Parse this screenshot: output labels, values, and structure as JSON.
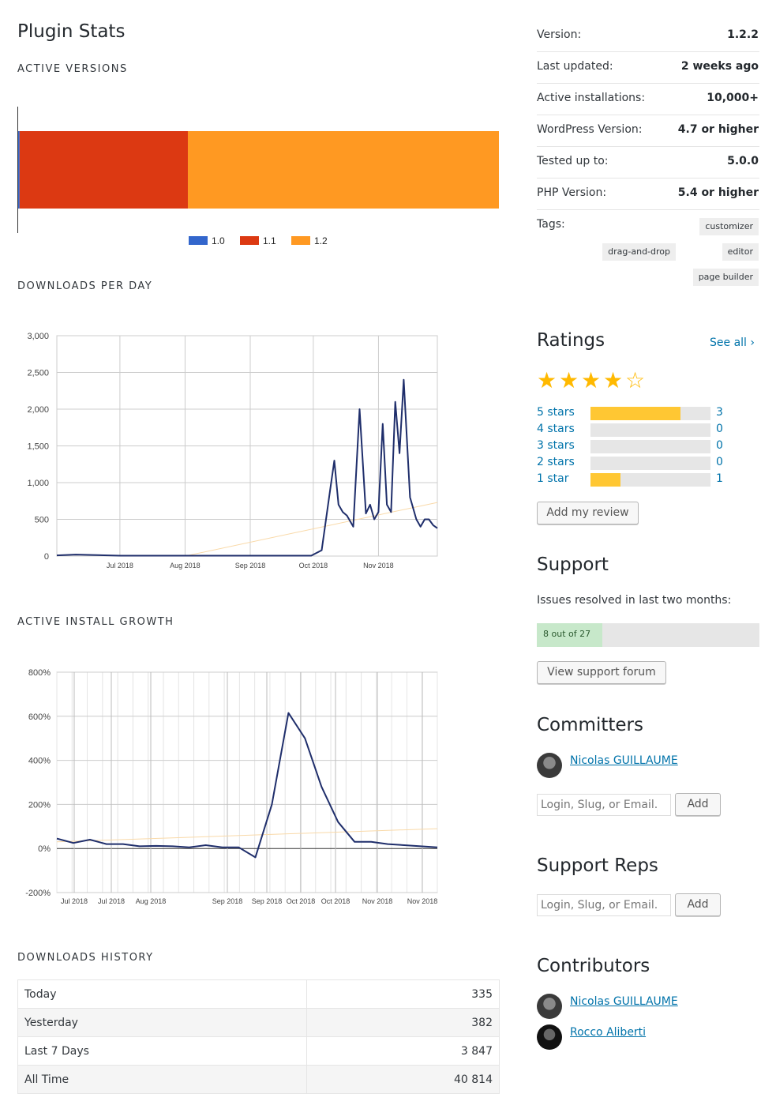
{
  "title": "Plugin Stats",
  "sections": {
    "active_versions": "ACTIVE VERSIONS",
    "downloads_per_day": "DOWNLOADS PER DAY",
    "active_install_growth": "ACTIVE INSTALL GROWTH",
    "downloads_history": "DOWNLOADS HISTORY"
  },
  "chart_data": [
    {
      "type": "bar",
      "categories": [
        "1.0",
        "1.1",
        "1.2"
      ],
      "values": [
        0.3,
        35.0,
        64.7
      ],
      "colors": [
        "#3366cc",
        "#dc3912",
        "#ff9922"
      ],
      "stacked": true,
      "legend": "bottom"
    },
    {
      "type": "line",
      "yticks": [
        "0",
        "500",
        "1,000",
        "1,500",
        "2,000",
        "2,500",
        "3,000"
      ],
      "ylim": [
        0,
        3000
      ],
      "xticks": [
        "Jul 2018",
        "Aug 2018",
        "Sep 2018",
        "Oct 2018",
        "Nov 2018"
      ],
      "series": [
        {
          "x": [
            "2018-06-01",
            "2018-06-10",
            "2018-07-01",
            "2018-08-01",
            "2018-09-01",
            "2018-09-30",
            "2018-10-05",
            "2018-10-09",
            "2018-10-11",
            "2018-10-13",
            "2018-10-15",
            "2018-10-17",
            "2018-10-20",
            "2018-10-23",
            "2018-10-26",
            "2018-10-28",
            "2018-10-30",
            "2018-11-01",
            "2018-11-03",
            "2018-11-05",
            "2018-11-07",
            "2018-11-09",
            "2018-11-11",
            "2018-11-13",
            "2018-11-16",
            "2018-11-19",
            "2018-11-21",
            "2018-11-23",
            "2018-11-25",
            "2018-11-27",
            "2018-11-29"
          ],
          "values": [
            10,
            20,
            5,
            5,
            5,
            5,
            80,
            900,
            1300,
            700,
            600,
            550,
            400,
            2000,
            580,
            700,
            500,
            600,
            1800,
            700,
            600,
            2100,
            1400,
            2400,
            800,
            500,
            400,
            500,
            500,
            420,
            380
          ],
          "color": "#1f2e6b"
        },
        {
          "x": [
            "2018-08-01",
            "2018-11-29"
          ],
          "values": [
            0,
            730
          ],
          "color": "#f9d9a8"
        }
      ]
    },
    {
      "type": "line",
      "yticks": [
        "-200%",
        "0%",
        "200%",
        "400%",
        "600%",
        "800%"
      ],
      "ylim": [
        -200,
        800
      ],
      "xticks": [
        "Jul 2018",
        "Jul 2018",
        "Aug 2018",
        "Sep 2018",
        "Sep 2018",
        "Oct 2018",
        "Oct 2018",
        "Nov 2018",
        "Nov 2018"
      ],
      "series": [
        {
          "values": [
            45,
            25,
            40,
            20,
            20,
            10,
            12,
            10,
            5,
            15,
            5,
            5,
            -40,
            200,
            615,
            500,
            280,
            120,
            30,
            30,
            20,
            15,
            10,
            5
          ],
          "color": "#1f2e6b"
        },
        {
          "values": [
            30,
            90
          ],
          "color": "#f9d9a8"
        }
      ]
    }
  ],
  "meta": [
    {
      "key": "Version:",
      "value": "1.2.2"
    },
    {
      "key": "Last updated:",
      "value": "2 weeks ago"
    },
    {
      "key": "Active installations:",
      "value": "10,000+"
    },
    {
      "key": "WordPress Version:",
      "value": "4.7 or higher"
    },
    {
      "key": "Tested up to:",
      "value": "5.0.0"
    },
    {
      "key": "PHP Version:",
      "value": "5.4 or higher"
    }
  ],
  "tags_label": "Tags:",
  "tags": [
    "customizer",
    "drag-and-drop",
    "editor",
    "page builder"
  ],
  "ratings": {
    "title": "Ratings",
    "see_all": "See all",
    "stars_value": 4,
    "rows": [
      {
        "label": "5 stars",
        "count": "3",
        "fraction": 0.75
      },
      {
        "label": "4 stars",
        "count": "0",
        "fraction": 0
      },
      {
        "label": "3 stars",
        "count": "0",
        "fraction": 0
      },
      {
        "label": "2 stars",
        "count": "0",
        "fraction": 0
      },
      {
        "label": "1 star",
        "count": "1",
        "fraction": 0.25
      }
    ],
    "add_review": "Add my review"
  },
  "support": {
    "title": "Support",
    "issues_text": "Issues resolved in last two months:",
    "resolved_label": "8 out of 27",
    "resolved_fraction": 0.296,
    "forum_button": "View support forum"
  },
  "committers": {
    "title": "Committers",
    "people": [
      "Nicolas GUILLAUME "
    ],
    "input_placeholder": "Login, Slug, or Email.",
    "add_label": "Add"
  },
  "support_reps": {
    "title": "Support Reps",
    "input_placeholder": "Login, Slug, or Email.",
    "add_label": "Add"
  },
  "contributors": {
    "title": "Contributors",
    "people": [
      "Nicolas GUILLAUME",
      "Rocco Aliberti"
    ]
  },
  "history": [
    {
      "label": "Today",
      "value": "335"
    },
    {
      "label": "Yesterday",
      "value": "382"
    },
    {
      "label": "Last 7 Days",
      "value": "3 847"
    },
    {
      "label": "All Time",
      "value": "40 814"
    }
  ]
}
